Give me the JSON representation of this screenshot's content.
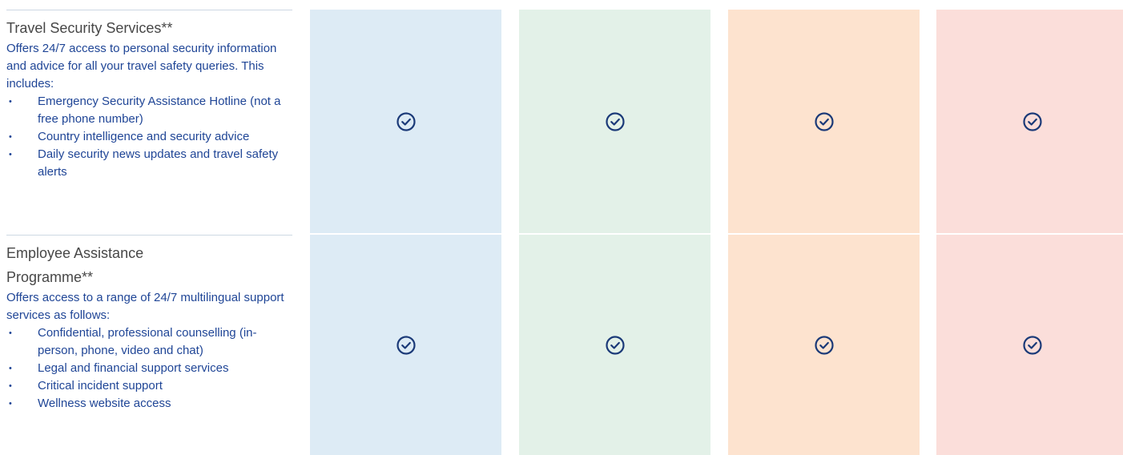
{
  "table": {
    "rows": [
      {
        "title": "Travel Security Services**",
        "description": "Offers 24/7 access to personal security information and advice for all your travel safety queries. This includes:",
        "bullets": [
          "Emergency Security Assistance Hotline (not a free phone number)",
          "Country intelligence and security advice",
          "Daily security news updates and travel safety alerts"
        ]
      },
      {
        "title": "Employee Assistance Programme**",
        "description": "Offers access to a range of 24/7 multilingual support services as follows:",
        "bullets": [
          "Confidential, professional counselling (in-person, phone, video and chat)",
          "Legal and financial support services",
          "Critical incident support",
          "Wellness website access"
        ]
      }
    ]
  }
}
